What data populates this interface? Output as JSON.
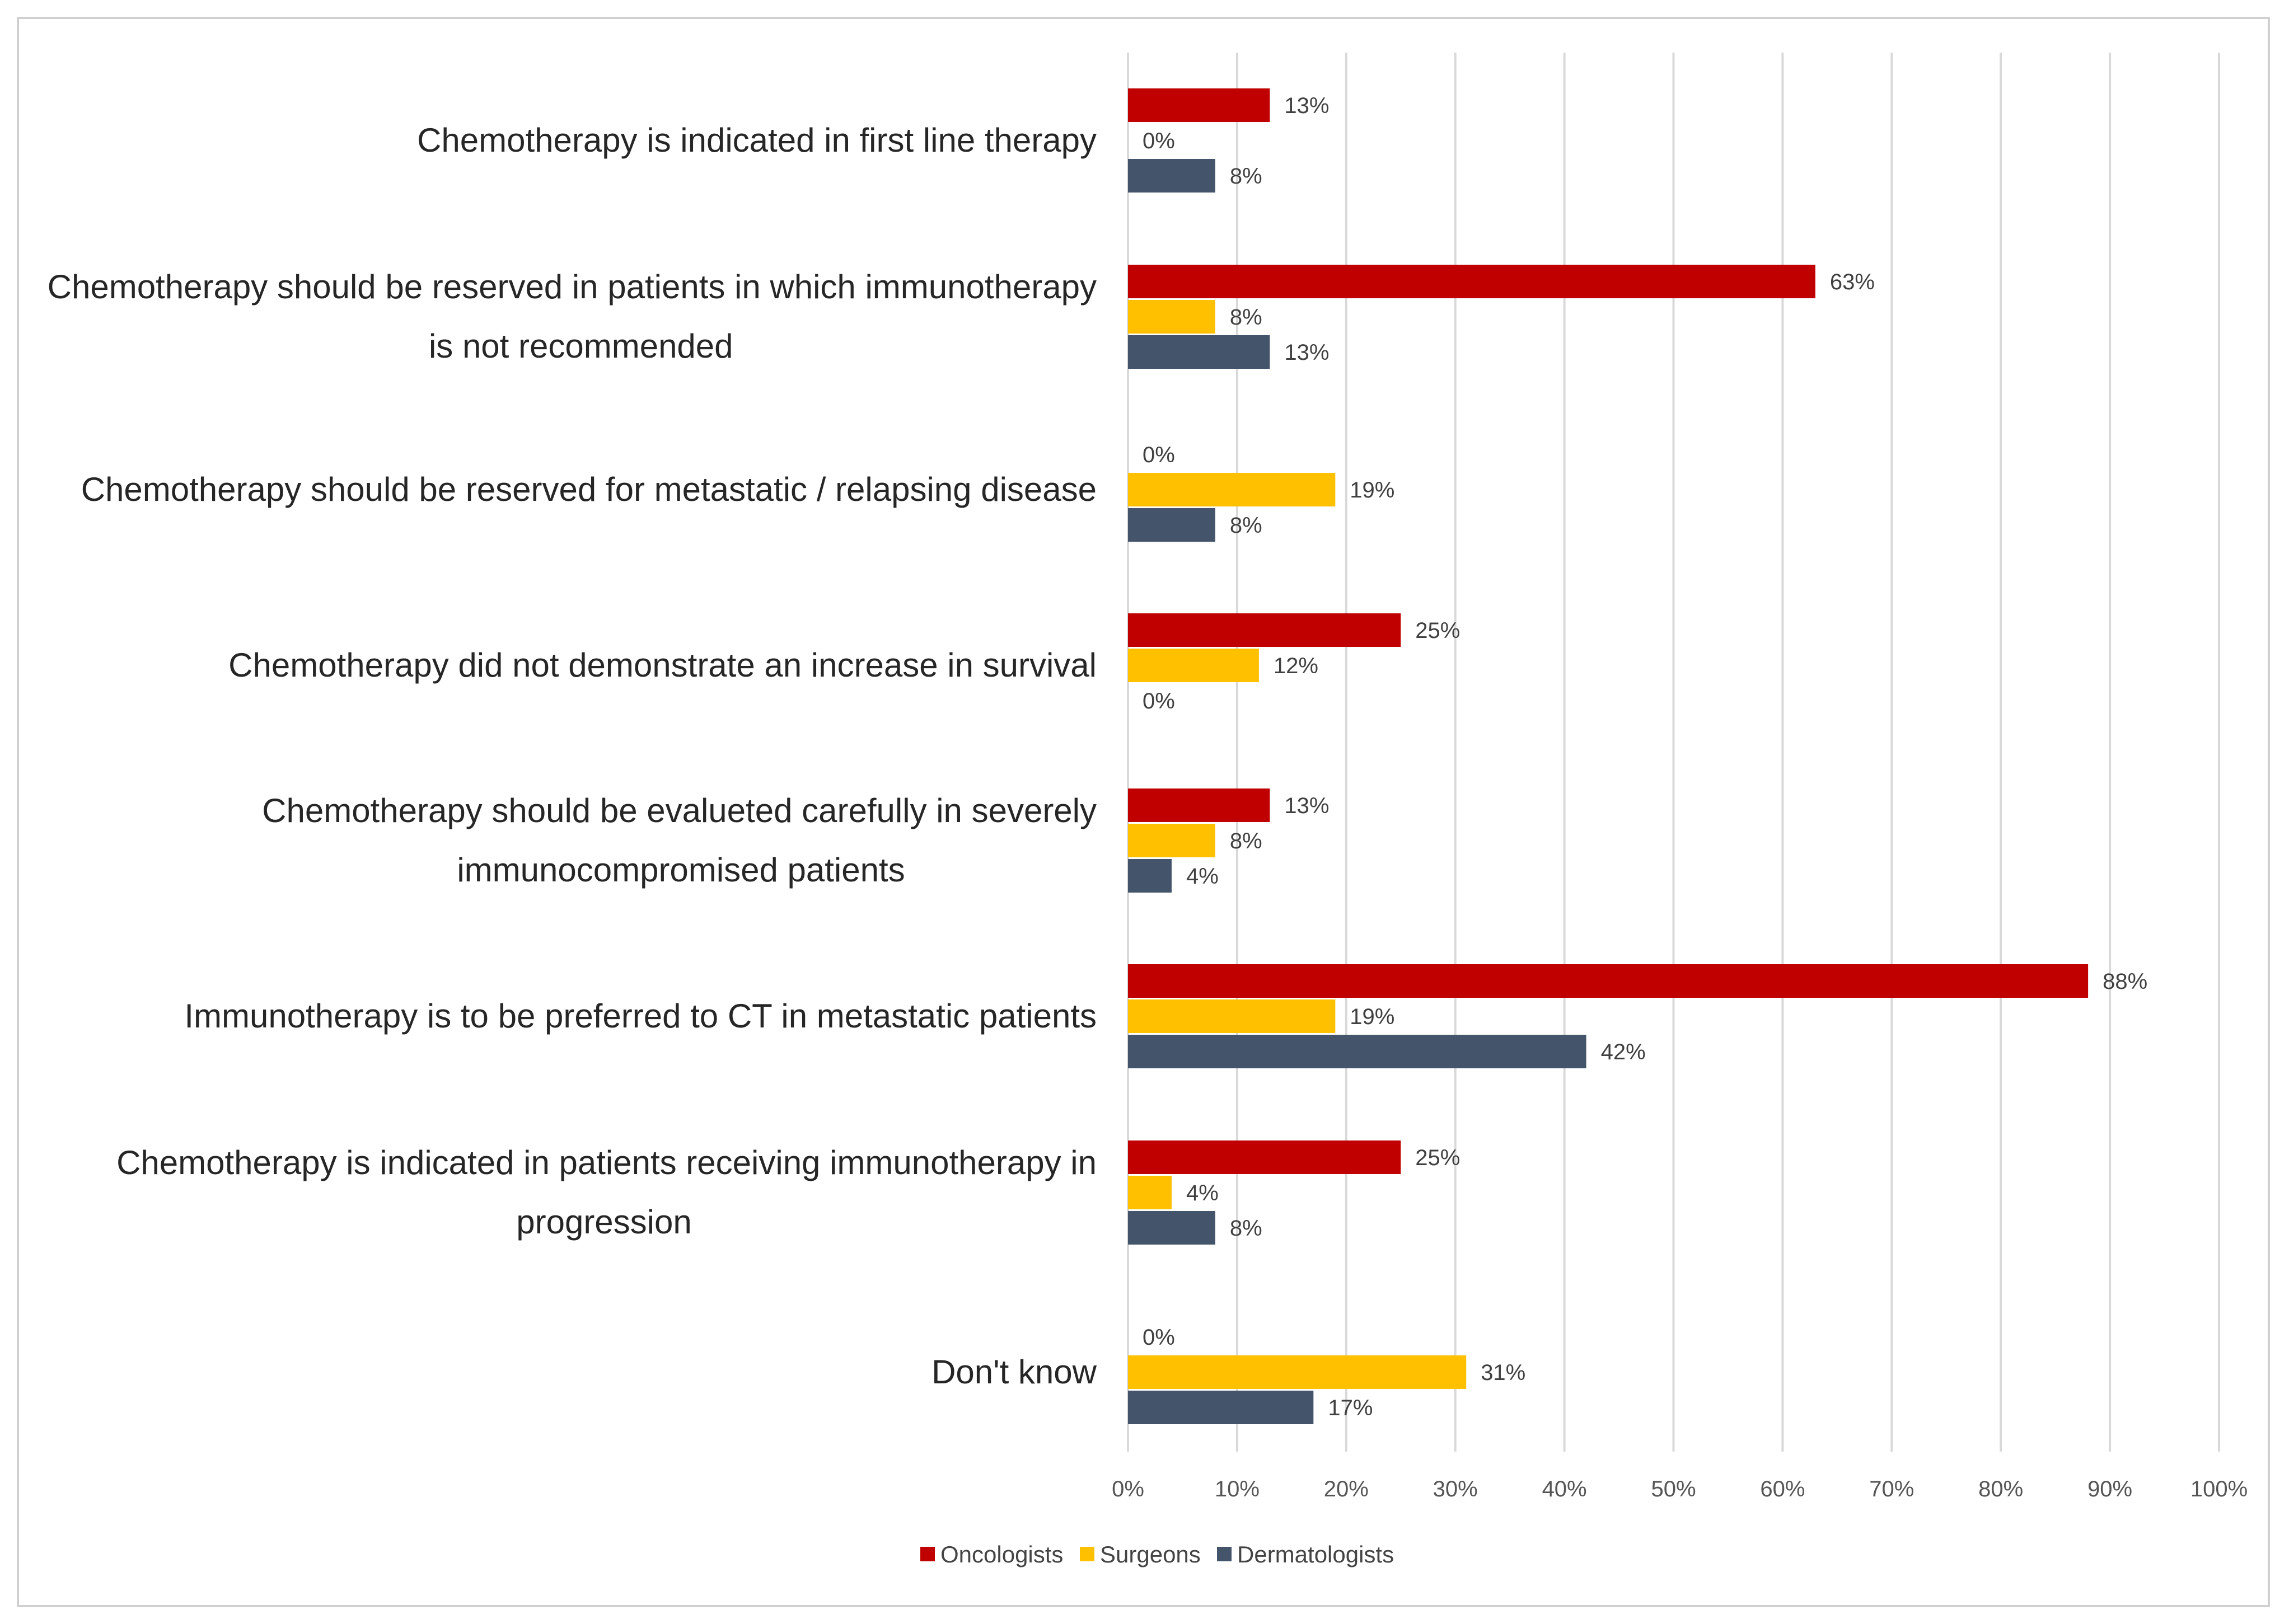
{
  "chart_data": {
    "type": "bar",
    "orientation": "horizontal",
    "categories": [
      "Chemotherapy is indicated in first line therapy",
      "Chemotherapy should  be reserved in patients in which immunotherapy is not recommended",
      "Chemotherapy should be reserved for metastatic / relapsing disease",
      "Chemotherapy did not demonstrate an increase in survival",
      "Chemotherapy should be evalueted carefully in severely immunocompromised patients",
      "Immunotherapy is to be preferred to CT in metastatic patients",
      "Chemotherapy is indicated in patients receiving immunotherapy in progression",
      "Don't know"
    ],
    "category_lines": [
      [
        "Chemotherapy is indicated in first line therapy"
      ],
      [
        "Chemotherapy should  be reserved in patients in which immunotherapy",
        "is not recommended"
      ],
      [
        "Chemotherapy should be reserved for metastatic / relapsing disease"
      ],
      [
        "Chemotherapy did not demonstrate an increase in survival"
      ],
      [
        "Chemotherapy should be evalueted carefully in severely",
        "immunocompromised patients"
      ],
      [
        "Immunotherapy is to be preferred to CT in metastatic patients"
      ],
      [
        "Chemotherapy is indicated in patients receiving immunotherapy in",
        "progression"
      ],
      [
        "Don't know"
      ]
    ],
    "series": [
      {
        "name": "Oncologists",
        "color": "#c00000",
        "values": [
          13,
          63,
          0,
          25,
          13,
          88,
          25,
          0
        ]
      },
      {
        "name": "Surgeons",
        "color": "#ffc000",
        "values": [
          0,
          8,
          19,
          12,
          8,
          19,
          4,
          31
        ]
      },
      {
        "name": "Dermatologists",
        "color": "#44546a",
        "values": [
          8,
          13,
          8,
          0,
          4,
          42,
          8,
          17
        ]
      }
    ],
    "x_ticks": [
      "0%",
      "10%",
      "20%",
      "30%",
      "40%",
      "50%",
      "60%",
      "70%",
      "80%",
      "90%",
      "100%"
    ],
    "xlim": [
      0,
      100
    ],
    "value_suffix": "%",
    "grid": "vertical",
    "legend": "bottom",
    "title": "",
    "xlabel": "",
    "ylabel": ""
  }
}
